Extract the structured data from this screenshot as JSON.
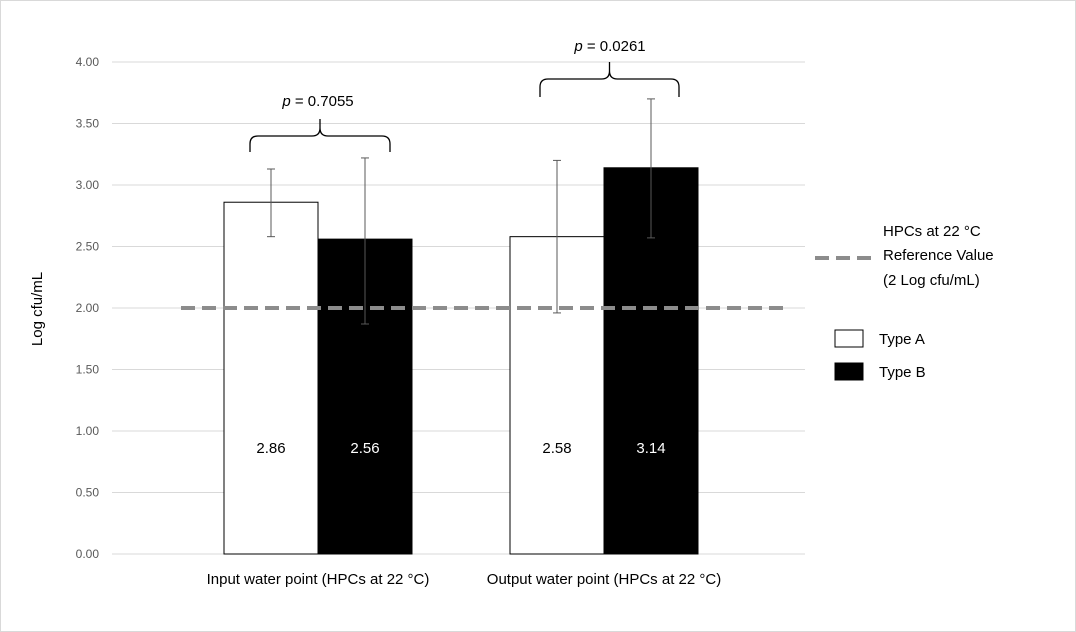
{
  "chart_data": {
    "type": "bar",
    "ylabel": "Log cfu/mL",
    "ylim": [
      0,
      4
    ],
    "y_ticks": [
      "0.00",
      "0.50",
      "1.00",
      "1.50",
      "2.00",
      "2.50",
      "3.00",
      "3.50",
      "4.00"
    ],
    "grid": "horizontal",
    "legend_position": "right",
    "categories": [
      "Input water point (HPCs at 22 °C)",
      "Output water point (HPCs at 22 °C)"
    ],
    "series": [
      {
        "name": "Type A",
        "color": "#ffffff",
        "values": [
          2.86,
          2.58
        ],
        "value_labels": [
          "2.86",
          "2.58"
        ],
        "error_low": [
          2.58,
          1.96
        ],
        "error_high": [
          3.13,
          3.2
        ]
      },
      {
        "name": "Type B",
        "color": "#000000",
        "values": [
          2.56,
          3.14
        ],
        "value_labels": [
          "2.56",
          "3.14"
        ],
        "error_low": [
          1.87,
          2.57
        ],
        "error_high": [
          3.22,
          3.7
        ]
      }
    ],
    "reference_line": {
      "value": 2.0,
      "label_lines": [
        "HPCs at 22 °C",
        "Reference Value",
        "(2 Log cfu/mL)"
      ],
      "color": "#8c8c8c"
    },
    "significance": [
      {
        "p_symbol": "p",
        "text": " = 0.7055"
      },
      {
        "p_symbol": "p",
        "text": " = 0.0261"
      }
    ]
  }
}
